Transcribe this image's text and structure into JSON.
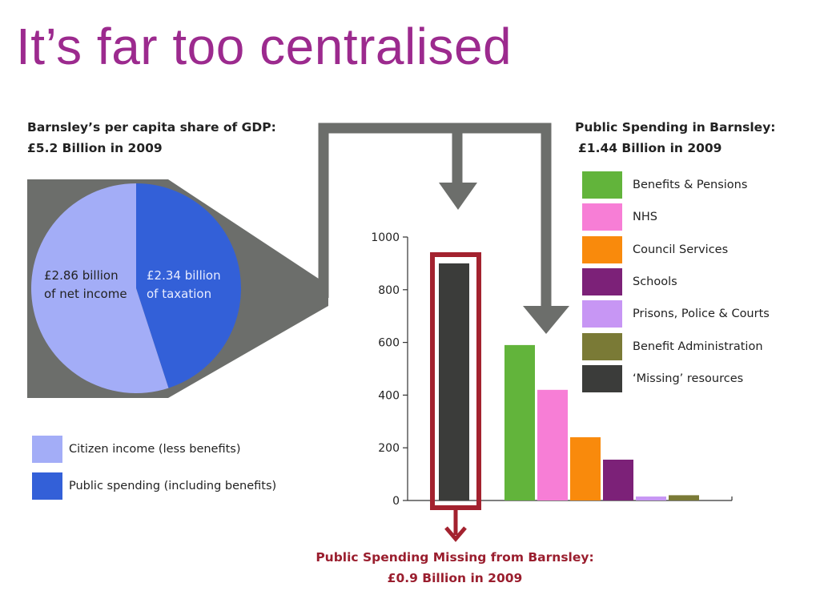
{
  "slide": {
    "title": "It’s far too centralised"
  },
  "gdp": {
    "header_line1": "Barnsley’s per capita share of GDP:",
    "header_line2": "£5.2 Billion in 2009",
    "slice_labels": [
      [
        "£2.86 billion",
        "of net income"
      ],
      [
        "£2.34 billion",
        "of taxation"
      ]
    ]
  },
  "public_spending": {
    "header_line1": "Public Spending in Barnsley:",
    "header_line2": "£1.44 Billion in 2009"
  },
  "missing": {
    "caption_line1": "Public Spending Missing from Barnsley:",
    "caption_line2": "£0.9 Billion in 2009",
    "highlight_color": "#a3222f"
  },
  "connector_color": "#6c6e6b",
  "chart_data": [
    {
      "type": "pie",
      "slices": [
        {
          "label": "Citizen income (less benefits)",
          "value": 2.86,
          "color": "#a3adf7"
        },
        {
          "label": "Public spending (including benefits)",
          "value": 2.34,
          "color": "#3360d8"
        }
      ]
    },
    {
      "type": "bar",
      "ylim": [
        0,
        1000
      ],
      "yticks": [
        0,
        200,
        400,
        600,
        800,
        1000
      ],
      "grid": false,
      "categories": [
        "‘Missing’ resources",
        "Benefits & Pensions",
        "NHS",
        "Council Services",
        "Schools",
        "Prisons, Police & Courts",
        "Benefit Administration"
      ],
      "values": [
        900,
        590,
        420,
        240,
        155,
        15,
        20
      ],
      "colors": [
        "#3b3c3a",
        "#62b43b",
        "#f77ed6",
        "#f98a0c",
        "#7c2178",
        "#c796f4",
        "#7a7a36"
      ],
      "legend_order": [
        "Benefits & Pensions",
        "NHS",
        "Council Services",
        "Schools",
        "Prisons, Police & Courts",
        "Benefit Administration",
        "‘Missing’ resources"
      ]
    }
  ]
}
